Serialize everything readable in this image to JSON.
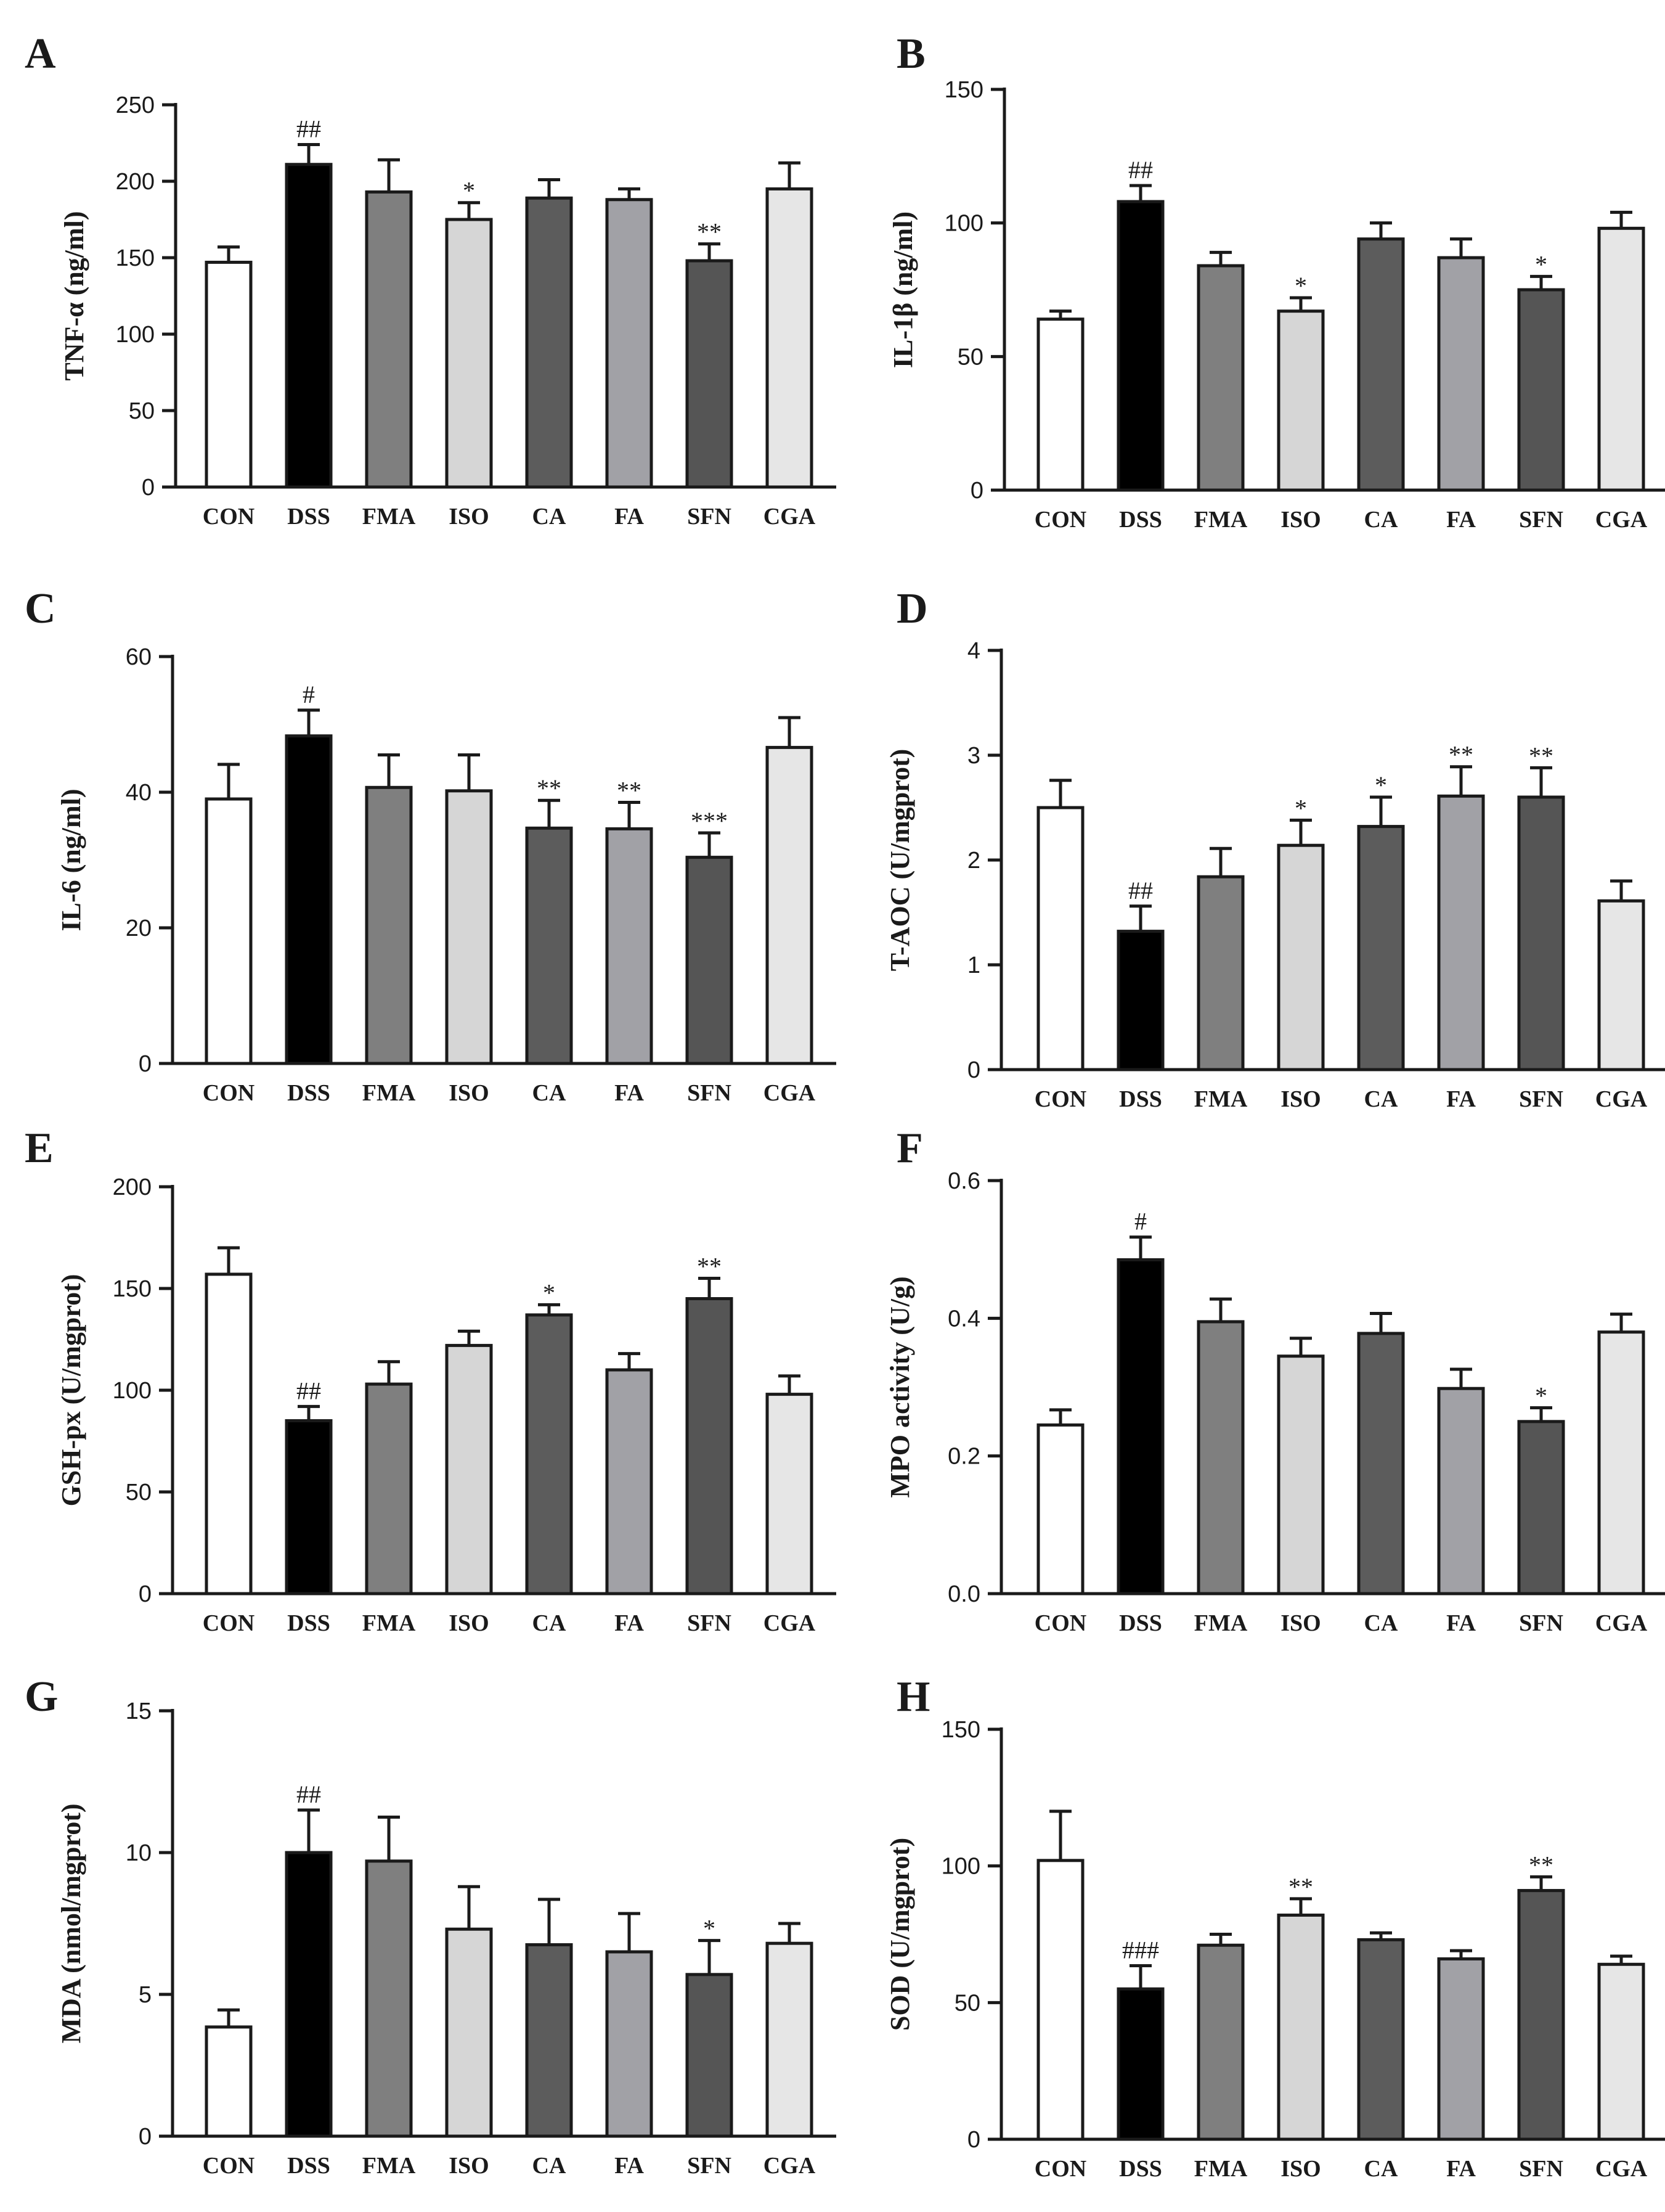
{
  "colors": [
    "#ffffff",
    "#000000",
    "#7f7f7f",
    "#d6d6d6",
    "#5c5c5c",
    "#a1a1a6",
    "#555555",
    "#e6e6e6"
  ],
  "chart_data": [
    {
      "type": "bar",
      "panel": "A",
      "ylabel": "TNF-α (ng/ml)",
      "categories": [
        "CON",
        "DSS",
        "FMA",
        "ISO",
        "CA",
        "FA",
        "SFN",
        "CGA"
      ],
      "values": [
        147,
        211,
        193,
        175,
        189,
        188,
        148,
        195
      ],
      "errors": [
        10,
        13,
        21,
        11,
        12,
        7,
        11,
        17
      ],
      "annotations": [
        "",
        "##",
        "",
        "*",
        "",
        "",
        "**",
        ""
      ],
      "ylim": [
        0,
        250
      ],
      "yticks": [
        "0",
        "50",
        "100",
        "150",
        "200",
        "250"
      ]
    },
    {
      "type": "bar",
      "panel": "B",
      "ylabel": "IL-1β (ng/ml)",
      "categories": [
        "CON",
        "DSS",
        "FMA",
        "ISO",
        "CA",
        "FA",
        "SFN",
        "CGA"
      ],
      "values": [
        64,
        108,
        84,
        67,
        94,
        87,
        75,
        98
      ],
      "errors": [
        3,
        6,
        5,
        5,
        6,
        7,
        5,
        6
      ],
      "annotations": [
        "",
        "##",
        "",
        "*",
        "",
        "",
        "*",
        ""
      ],
      "ylim": [
        0,
        150
      ],
      "yticks": [
        "0",
        "50",
        "100",
        "150"
      ]
    },
    {
      "type": "bar",
      "panel": "C",
      "ylabel": "IL-6 (ng/ml)",
      "categories": [
        "CON",
        "DSS",
        "FMA",
        "ISO",
        "CA",
        "FA",
        "SFN",
        "CGA"
      ],
      "values": [
        39,
        48.3,
        40.7,
        40.2,
        34.7,
        34.6,
        30.4,
        46.6
      ],
      "errors": [
        5.1,
        3.8,
        4.8,
        5.3,
        4.1,
        3.9,
        3.6,
        4.4
      ],
      "annotations": [
        "",
        "#",
        "",
        "",
        "**",
        "**",
        "***",
        ""
      ],
      "ylim": [
        0,
        60
      ],
      "yticks": [
        "0",
        "20",
        "40",
        "60"
      ]
    },
    {
      "type": "bar",
      "panel": "D",
      "ylabel": "T-AOC (U/mgprot)",
      "categories": [
        "CON",
        "DSS",
        "FMA",
        "ISO",
        "CA",
        "FA",
        "SFN",
        "CGA"
      ],
      "values": [
        2.5,
        1.32,
        1.84,
        2.14,
        2.32,
        2.61,
        2.6,
        1.61
      ],
      "errors": [
        0.26,
        0.24,
        0.27,
        0.24,
        0.28,
        0.28,
        0.28,
        0.19
      ],
      "annotations": [
        "",
        "##",
        "",
        "*",
        "*",
        "**",
        "**",
        ""
      ],
      "ylim": [
        0,
        4
      ],
      "yticks": [
        "0",
        "1",
        "2",
        "3",
        "4"
      ]
    },
    {
      "type": "bar",
      "panel": "E",
      "ylabel": "GSH-px (U/mgprot)",
      "categories": [
        "CON",
        "DSS",
        "FMA",
        "ISO",
        "CA",
        "FA",
        "SFN",
        "CGA"
      ],
      "values": [
        157,
        85,
        103,
        122,
        137,
        110,
        145,
        98
      ],
      "errors": [
        13,
        7,
        11,
        7,
        5,
        8,
        10,
        9
      ],
      "annotations": [
        "",
        "##",
        "",
        "",
        "*",
        "",
        "**",
        ""
      ],
      "ylim": [
        0,
        200
      ],
      "yticks": [
        "0",
        "50",
        "100",
        "150",
        "200"
      ]
    },
    {
      "type": "bar",
      "panel": "F",
      "ylabel": "MPO activity (U/g)",
      "categories": [
        "CON",
        "DSS",
        "FMA",
        "ISO",
        "CA",
        "FA",
        "SFN",
        "CGA"
      ],
      "values": [
        0.245,
        0.485,
        0.395,
        0.345,
        0.378,
        0.298,
        0.25,
        0.38
      ],
      "errors": [
        0.022,
        0.033,
        0.033,
        0.026,
        0.029,
        0.028,
        0.02,
        0.026
      ],
      "annotations": [
        "",
        "#",
        "",
        "",
        "",
        "",
        "*",
        ""
      ],
      "ylim": [
        0,
        0.6
      ],
      "yticks": [
        "0.0",
        "0.2",
        "0.4",
        "0.6"
      ]
    },
    {
      "type": "bar",
      "panel": "G",
      "ylabel": "MDA (nmol/mgprot)",
      "categories": [
        "CON",
        "DSS",
        "FMA",
        "ISO",
        "CA",
        "FA",
        "SFN",
        "CGA"
      ],
      "values": [
        3.85,
        10,
        9.7,
        7.3,
        6.75,
        6.5,
        5.7,
        6.8
      ],
      "errors": [
        0.6,
        1.5,
        1.55,
        1.5,
        1.6,
        1.35,
        1.2,
        0.7
      ],
      "annotations": [
        "",
        "##",
        "",
        "",
        "",
        "",
        "*",
        ""
      ],
      "ylim": [
        0,
        15
      ],
      "yticks": [
        "0",
        "5",
        "10",
        "15"
      ]
    },
    {
      "type": "bar",
      "panel": "H",
      "ylabel": "SOD (U/mgprot)",
      "categories": [
        "CON",
        "DSS",
        "FMA",
        "ISO",
        "CA",
        "FA",
        "SFN",
        "CGA"
      ],
      "values": [
        102,
        55,
        71,
        82,
        73,
        66,
        91,
        64
      ],
      "errors": [
        18,
        8.5,
        4,
        6,
        2.5,
        3,
        5,
        3
      ],
      "annotations": [
        "",
        "###",
        "",
        "**",
        "",
        "",
        "**",
        ""
      ],
      "ylim": [
        0,
        150
      ],
      "yticks": [
        "0",
        "50",
        "100",
        "150"
      ]
    }
  ]
}
